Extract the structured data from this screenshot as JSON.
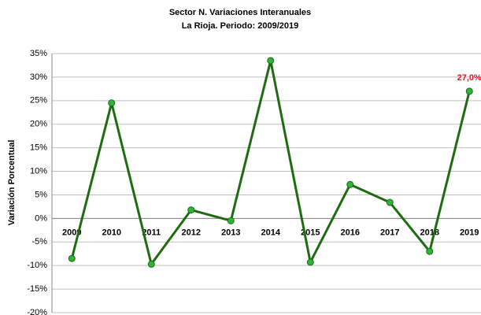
{
  "chart_data": {
    "type": "line",
    "title": "Sector N. Variaciones Interanuales",
    "subtitle": "La Rioja. Periodo: 2009/2019",
    "y_label": "Variación Porcentual",
    "categories": [
      "2009",
      "2010",
      "2011",
      "2012",
      "2013",
      "2014",
      "2015",
      "2016",
      "2017",
      "2018",
      "2019"
    ],
    "series": [
      {
        "name": "Sector N",
        "color": "#1e6b12",
        "marker_color": "#2fb33a",
        "values": [
          -8.5,
          24.5,
          -9.7,
          1.8,
          -0.5,
          33.5,
          -9.3,
          7.2,
          3.4,
          -7.0,
          27.0
        ],
        "value_labels": [
          null,
          null,
          null,
          null,
          null,
          null,
          null,
          null,
          null,
          null,
          "27,0%"
        ]
      }
    ],
    "value_label_color": "#e8141e",
    "ylim": [
      -20,
      35
    ],
    "yticks": [
      {
        "value": -20,
        "label": "-20%"
      },
      {
        "value": -15,
        "label": "-15%"
      },
      {
        "value": -10,
        "label": "-10%"
      },
      {
        "value": -5,
        "label": "-5%"
      },
      {
        "value": 0,
        "label": "0%"
      },
      {
        "value": 5,
        "label": "5%"
      },
      {
        "value": 10,
        "label": "10%"
      },
      {
        "value": 15,
        "label": "15%"
      },
      {
        "value": 20,
        "label": "20%"
      },
      {
        "value": 25,
        "label": "25%"
      },
      {
        "value": 30,
        "label": "30%"
      },
      {
        "value": 35,
        "label": "35%"
      }
    ],
    "grid": true
  }
}
